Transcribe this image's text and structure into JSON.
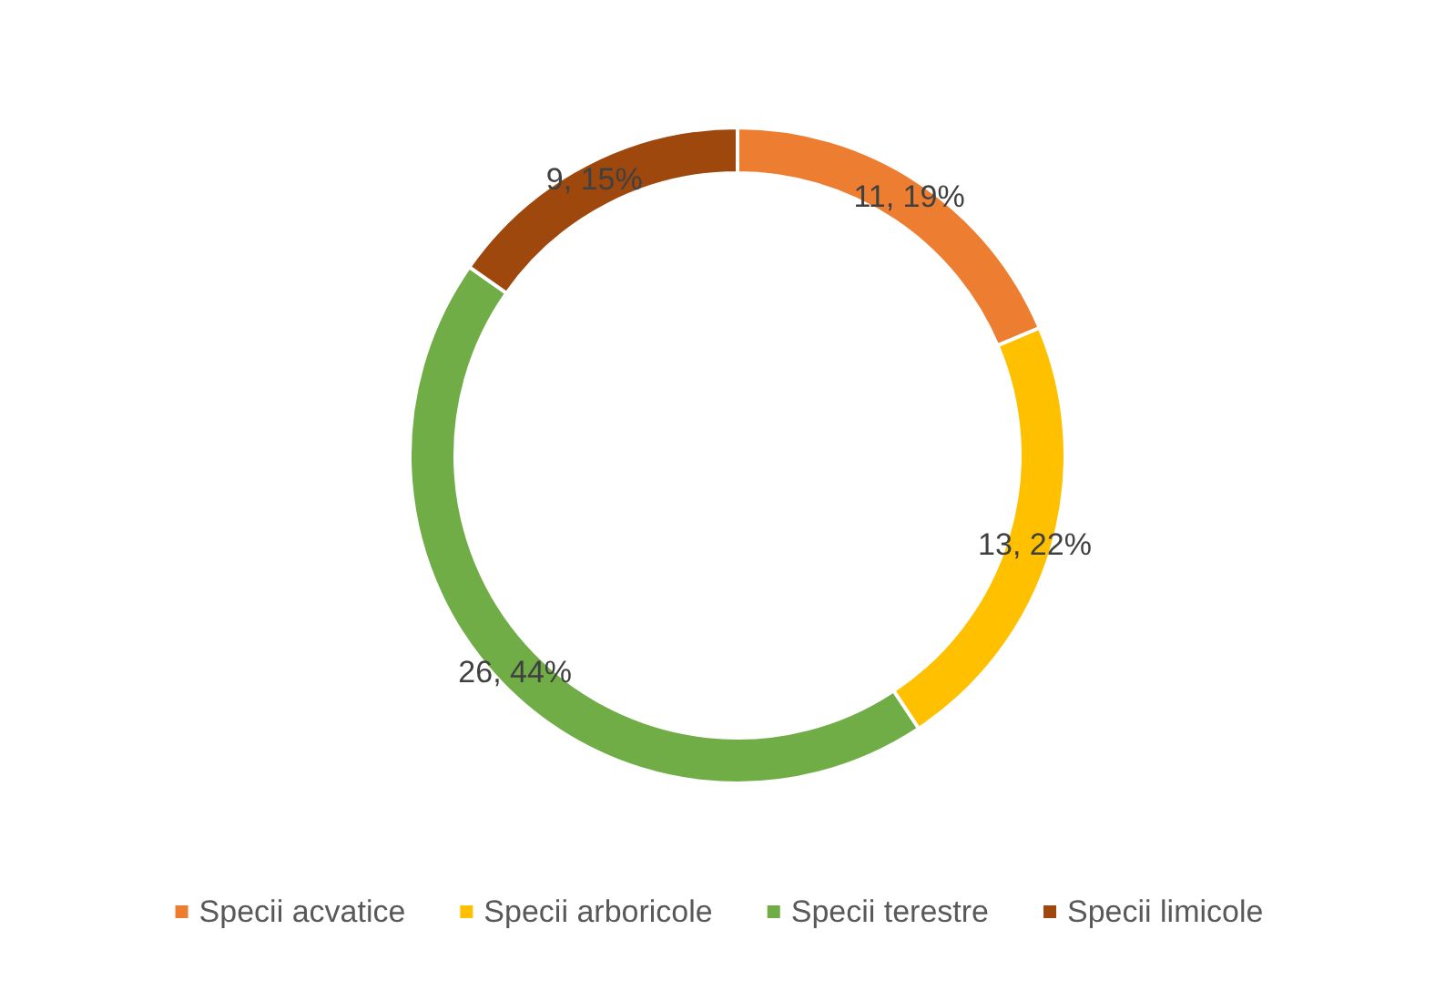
{
  "chart_data": {
    "type": "donut",
    "categories": [
      "Specii acvatice",
      "Specii arboricole",
      "Specii terestre",
      "Specii limicole"
    ],
    "values": [
      11,
      13,
      26,
      9
    ],
    "colors": [
      "#ed7d31",
      "#ffc000",
      "#70ad47",
      "#9e480e"
    ],
    "value_labels": [
      "11, 19%",
      "13, 22%",
      "26, 44%",
      "9, 15%"
    ],
    "legend": "bottom"
  }
}
